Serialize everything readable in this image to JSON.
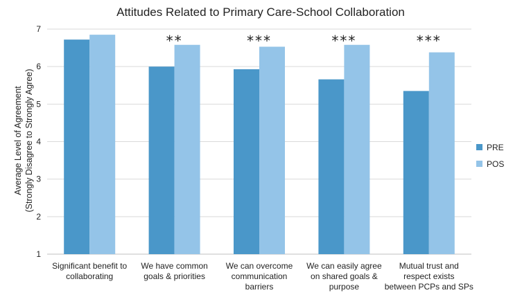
{
  "chart_data": {
    "type": "bar",
    "title": "Attitudes Related to Primary Care-School Collaboration",
    "ylabel_lines": [
      "Average Level of Agreement",
      "(Strongly Disagree to Strongly Agree)"
    ],
    "xlabel": "",
    "ylim": [
      1,
      7
    ],
    "yticks": [
      "1",
      "2",
      "3",
      "4",
      "5",
      "6",
      "7"
    ],
    "grid": true,
    "legend_position": "right",
    "categories": [
      [
        "Significant benefit to",
        "collaborating"
      ],
      [
        "We have common",
        "goals & priorities"
      ],
      [
        "We can overcome",
        "communication",
        "barriers"
      ],
      [
        "We can easily agree",
        "on shared goals &",
        "purpose"
      ],
      [
        "Mutual trust and",
        "respect exists",
        "between PCPs and SPs"
      ]
    ],
    "series": [
      {
        "name": "PRE",
        "color": "#4a97c9",
        "values": [
          6.72,
          6.0,
          5.93,
          5.66,
          5.35
        ]
      },
      {
        "name": "POS",
        "color": "#94c4e8",
        "values": [
          6.85,
          6.58,
          6.53,
          6.58,
          6.38
        ]
      }
    ],
    "significance": [
      "",
      "**",
      "***",
      "***",
      "***"
    ]
  }
}
